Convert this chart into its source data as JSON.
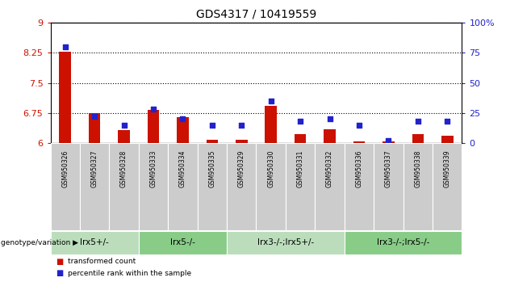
{
  "title": "GDS4317 / 10419559",
  "samples": [
    "GSM950326",
    "GSM950327",
    "GSM950328",
    "GSM950333",
    "GSM950334",
    "GSM950335",
    "GSM950329",
    "GSM950330",
    "GSM950331",
    "GSM950332",
    "GSM950336",
    "GSM950337",
    "GSM950338",
    "GSM950339"
  ],
  "transformed_count": [
    8.28,
    6.75,
    6.32,
    6.82,
    6.65,
    6.08,
    6.08,
    6.92,
    6.22,
    6.35,
    6.04,
    6.05,
    6.22,
    6.18
  ],
  "percentile_rank": [
    80,
    22,
    15,
    28,
    20,
    15,
    15,
    35,
    18,
    20,
    15,
    2,
    18,
    18
  ],
  "ymin": 6.0,
  "ymax": 9.0,
  "yticks": [
    6,
    6.75,
    7.5,
    8.25,
    9
  ],
  "ytick_labels": [
    "6",
    "6.75",
    "7.5",
    "8.25",
    "9"
  ],
  "right_yticks": [
    0,
    25,
    50,
    75,
    100
  ],
  "right_ytick_labels": [
    "0",
    "25",
    "50",
    "75",
    "100%"
  ],
  "bar_color": "#cc1100",
  "dot_color": "#2222cc",
  "groups": [
    {
      "label": "lrx5+/-",
      "start": 0,
      "end": 3,
      "color": "#bbddbb"
    },
    {
      "label": "lrx5-/-",
      "start": 3,
      "end": 6,
      "color": "#88cc88"
    },
    {
      "label": "lrx3-/-;lrx5+/-",
      "start": 6,
      "end": 10,
      "color": "#bbddbb"
    },
    {
      "label": "lrx3-/-;lrx5-/-",
      "start": 10,
      "end": 14,
      "color": "#88cc88"
    }
  ],
  "group_label_prefix": "genotype/variation",
  "legend_bar_label": "transformed count",
  "legend_dot_label": "percentile rank within the sample",
  "sample_bg_color": "#cccccc",
  "bar_width": 0.4
}
